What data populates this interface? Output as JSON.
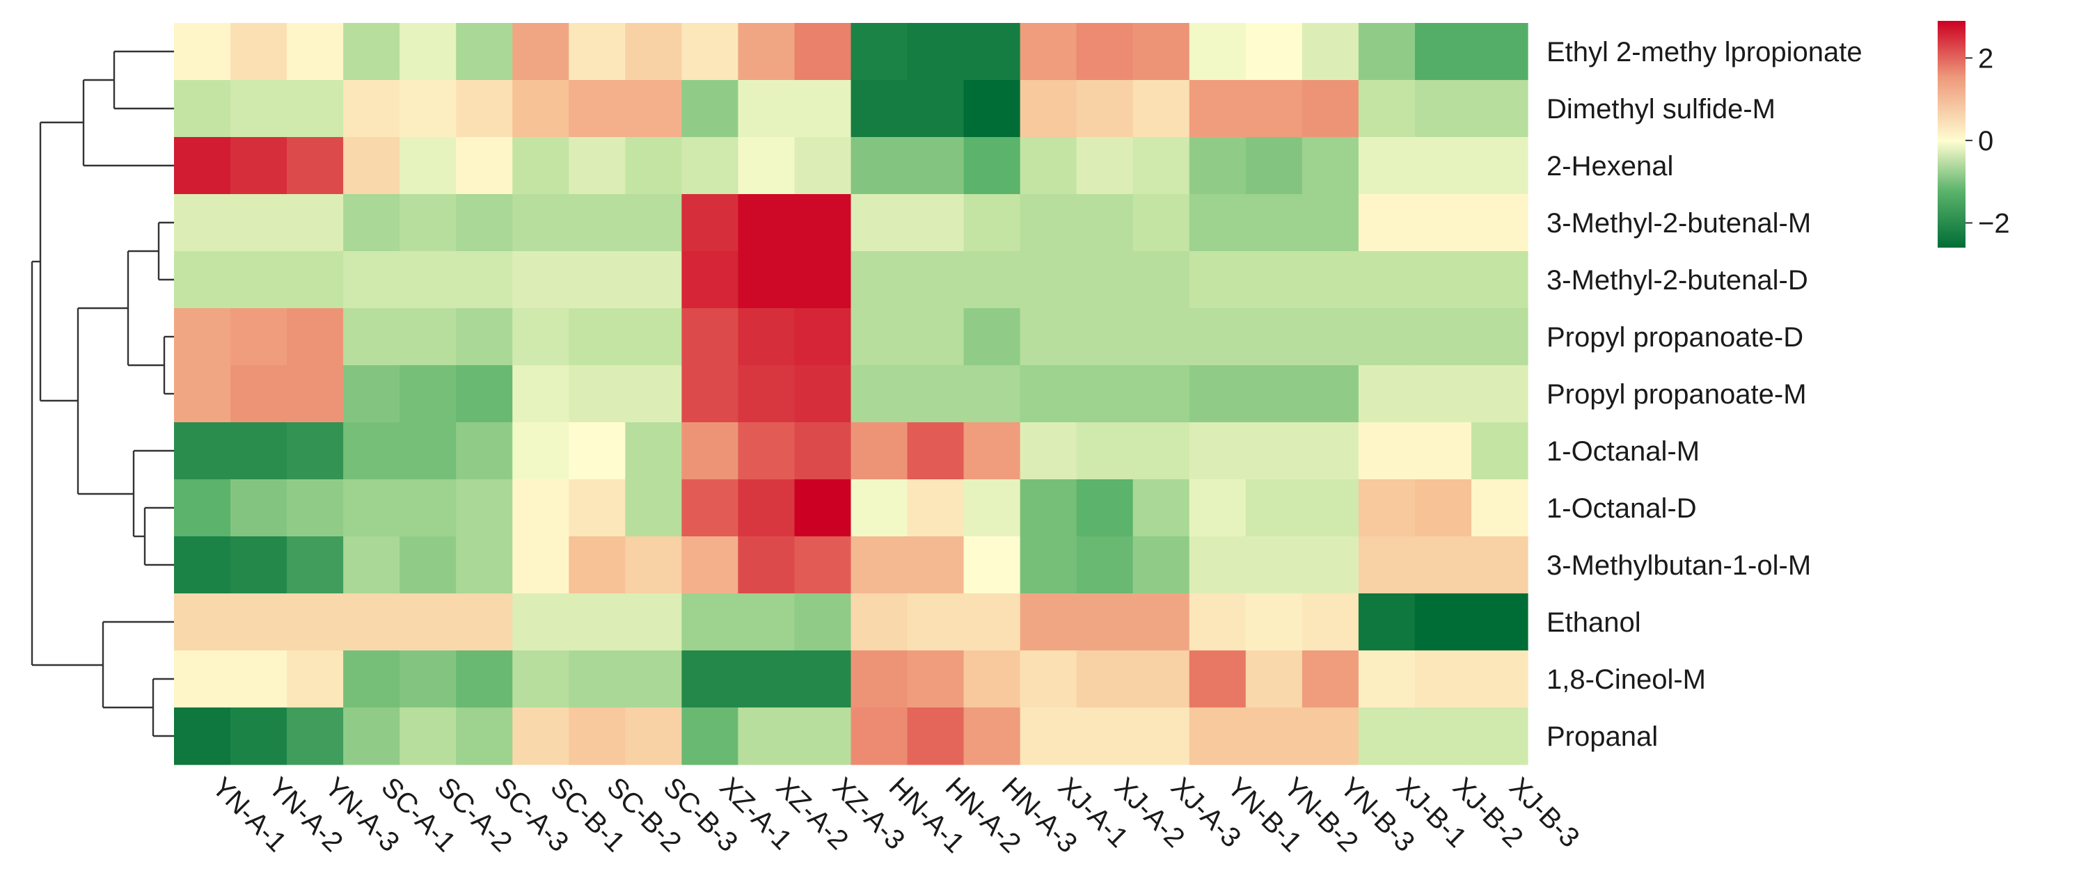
{
  "chart_data": {
    "type": "heatmap",
    "title": "",
    "xlabel": "",
    "ylabel": "",
    "rows": [
      "Ethyl 2-methy lpropionate",
      "Dimethyl sulfide-M",
      "2-Hexenal",
      "3-Methyl-2-butenal-M",
      "3-Methyl-2-butenal-D",
      "Propyl propanoate-D",
      "Propyl propanoate-M",
      "1-Octanal-M",
      "1-Octanal-D",
      "3-Methylbutan-1-ol-M",
      "Ethanol",
      "1,8-Cineol-M",
      "Propanal"
    ],
    "columns": [
      "YN-A-1",
      "YN-A-2",
      "YN-A-3",
      "SC-A-1",
      "SC-A-2",
      "SC-A-3",
      "SC-B-1",
      "SC-B-2",
      "SC-B-3",
      "XZ-A-1",
      "XZ-A-2",
      "XZ-A-3",
      "HN-A-1",
      "HN-A-2",
      "HN-A-3",
      "XJ-A-1",
      "XJ-A-2",
      "XJ-A-3",
      "YN-B-1",
      "YN-B-2",
      "YN-B-3",
      "XJ-B-1",
      "XJ-B-2",
      "XJ-B-3"
    ],
    "values": [
      [
        0.1,
        0.4,
        0.1,
        -0.6,
        -0.2,
        -0.7,
        1.1,
        0.3,
        0.6,
        0.3,
        1.1,
        1.5,
        -2.2,
        -2.3,
        -2.3,
        1.2,
        1.4,
        1.3,
        -0.1,
        0.0,
        -0.3,
        -0.9,
        -1.4,
        -1.4
      ],
      [
        -0.5,
        -0.4,
        -0.4,
        0.3,
        0.2,
        0.4,
        0.8,
        1.0,
        1.0,
        -0.9,
        -0.2,
        -0.2,
        -2.3,
        -2.3,
        -2.7,
        0.7,
        0.6,
        0.4,
        1.2,
        1.2,
        1.3,
        -0.5,
        -0.6,
        -0.6
      ],
      [
        2.6,
        2.4,
        2.1,
        0.5,
        -0.2,
        0.1,
        -0.5,
        -0.3,
        -0.5,
        -0.4,
        -0.1,
        -0.3,
        -1.0,
        -1.0,
        -1.3,
        -0.5,
        -0.3,
        -0.4,
        -0.9,
        -1.0,
        -0.8,
        -0.2,
        -0.2,
        -0.2
      ],
      [
        -0.3,
        -0.3,
        -0.3,
        -0.7,
        -0.6,
        -0.7,
        -0.6,
        -0.6,
        -0.6,
        2.4,
        2.8,
        2.8,
        -0.3,
        -0.3,
        -0.5,
        -0.6,
        -0.6,
        -0.5,
        -0.8,
        -0.8,
        -0.8,
        0.1,
        0.1,
        0.1
      ],
      [
        -0.5,
        -0.5,
        -0.5,
        -0.4,
        -0.4,
        -0.4,
        -0.3,
        -0.3,
        -0.3,
        2.5,
        2.8,
        2.8,
        -0.6,
        -0.6,
        -0.6,
        -0.6,
        -0.6,
        -0.6,
        -0.5,
        -0.5,
        -0.5,
        -0.5,
        -0.5,
        -0.5
      ],
      [
        1.1,
        1.2,
        1.3,
        -0.6,
        -0.6,
        -0.7,
        -0.4,
        -0.5,
        -0.5,
        2.1,
        2.4,
        2.5,
        -0.6,
        -0.6,
        -0.9,
        -0.6,
        -0.6,
        -0.6,
        -0.6,
        -0.6,
        -0.6,
        -0.6,
        -0.6,
        -0.6
      ],
      [
        1.1,
        1.3,
        1.3,
        -1.0,
        -1.1,
        -1.2,
        -0.2,
        -0.3,
        -0.3,
        2.1,
        2.3,
        2.4,
        -0.7,
        -0.7,
        -0.7,
        -0.8,
        -0.8,
        -0.8,
        -0.9,
        -0.9,
        -0.9,
        -0.3,
        -0.3,
        -0.3
      ],
      [
        -2.0,
        -2.0,
        -1.9,
        -1.1,
        -1.1,
        -0.9,
        -0.1,
        0.0,
        -0.6,
        1.3,
        1.9,
        2.1,
        1.3,
        1.9,
        1.2,
        -0.3,
        -0.4,
        -0.4,
        -0.3,
        -0.3,
        -0.3,
        0.1,
        0.1,
        -0.5
      ],
      [
        -1.3,
        -1.0,
        -0.9,
        -0.8,
        -0.8,
        -0.7,
        0.1,
        0.3,
        -0.6,
        1.9,
        2.3,
        2.9,
        -0.1,
        0.3,
        -0.2,
        -1.1,
        -1.3,
        -0.7,
        -0.2,
        -0.4,
        -0.4,
        0.7,
        0.8,
        0.1
      ],
      [
        -2.2,
        -2.1,
        -1.7,
        -0.7,
        -0.9,
        -0.7,
        0.1,
        0.8,
        0.6,
        1.0,
        2.1,
        1.9,
        0.9,
        0.9,
        0.0,
        -1.1,
        -1.2,
        -0.9,
        -0.3,
        -0.3,
        -0.3,
        0.6,
        0.6,
        0.6
      ],
      [
        0.5,
        0.5,
        0.5,
        0.5,
        0.5,
        0.5,
        -0.3,
        -0.3,
        -0.3,
        -0.8,
        -0.8,
        -0.9,
        0.5,
        0.4,
        0.4,
        1.1,
        1.1,
        1.1,
        0.3,
        0.2,
        0.3,
        -2.4,
        -2.6,
        -2.6
      ],
      [
        0.1,
        0.1,
        0.3,
        -1.1,
        -1.0,
        -1.2,
        -0.6,
        -0.7,
        -0.7,
        -2.1,
        -2.1,
        -2.1,
        1.3,
        1.2,
        0.7,
        0.4,
        0.6,
        0.6,
        1.6,
        0.5,
        1.2,
        0.2,
        0.3,
        0.3
      ],
      [
        -2.4,
        -2.2,
        -1.7,
        -0.9,
        -0.6,
        -0.8,
        0.5,
        0.7,
        0.6,
        -1.2,
        -0.6,
        -0.6,
        1.4,
        1.8,
        1.2,
        0.3,
        0.3,
        0.3,
        0.7,
        0.7,
        0.7,
        -0.4,
        -0.4,
        -0.4
      ]
    ],
    "colorscale": {
      "low": "#006d36",
      "mid": "#fffdd0",
      "high": "#cc0022",
      "min": -2.6,
      "max": 2.9,
      "legend_ticks": [
        {
          "value": 2,
          "label": "2"
        },
        {
          "value": 0,
          "label": "0"
        },
        {
          "value": -2,
          "label": "−2"
        }
      ]
    },
    "row_dendrogram": true,
    "legend_position": "top-right"
  }
}
